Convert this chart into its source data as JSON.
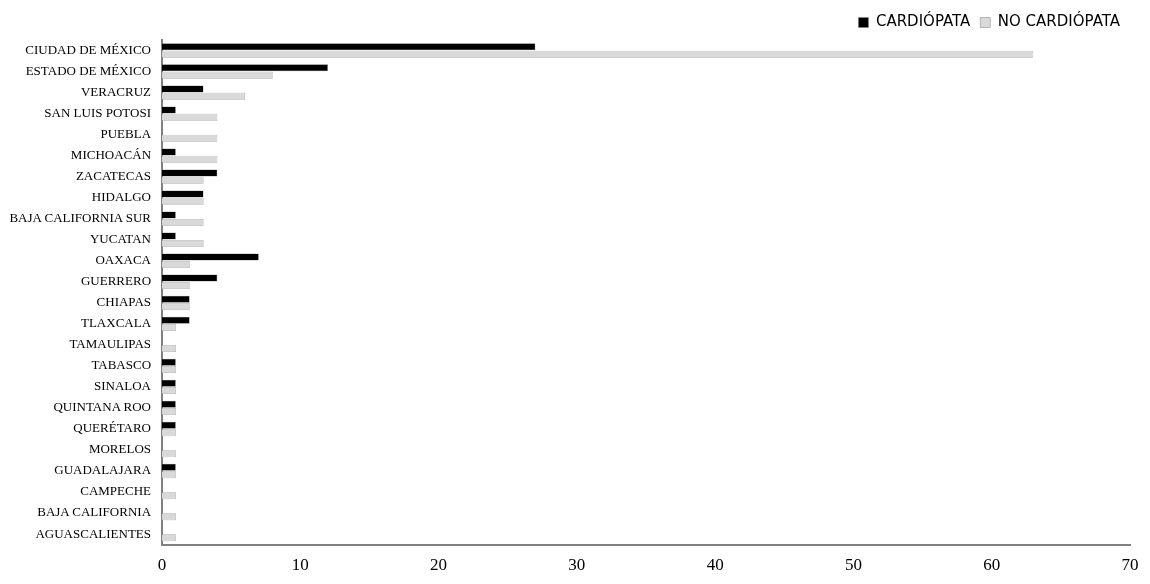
{
  "chart_data": {
    "type": "bar",
    "orientation": "horizontal",
    "categories": [
      "CIUDAD DE MÉXICO",
      "ESTADO DE MÉXICO",
      "VERACRUZ",
      "SAN LUIS POTOSI",
      "PUEBLA",
      "MICHOACÁN",
      "ZACATECAS",
      "HIDALGO",
      "BAJA CALIFORNIA SUR",
      "YUCATAN",
      "OAXACA",
      "GUERRERO",
      "CHIAPAS",
      "TLAXCALA",
      "TAMAULIPAS",
      "TABASCO",
      "SINALOA",
      "QUINTANA ROO",
      "QUERÉTARO",
      "MORELOS",
      "GUADALAJARA",
      "CAMPECHE",
      "BAJA CALIFORNIA",
      "AGUASCALIENTES"
    ],
    "series": [
      {
        "name": "CARDIÓPATA",
        "color": "#000000",
        "values": [
          27,
          12,
          3,
          1,
          0,
          1,
          4,
          3,
          1,
          1,
          7,
          4,
          2,
          2,
          0,
          1,
          1,
          1,
          1,
          0,
          1,
          0,
          0,
          0
        ]
      },
      {
        "name": "NO CARDIÓPATA",
        "color": "#d9d9d9",
        "values": [
          63,
          8,
          6,
          4,
          4,
          4,
          3,
          3,
          3,
          3,
          2,
          2,
          2,
          1,
          1,
          1,
          1,
          1,
          1,
          1,
          1,
          1,
          1,
          1
        ]
      }
    ],
    "xlim": [
      0,
      70
    ],
    "xticks": [
      0,
      10,
      20,
      30,
      40,
      50,
      60,
      70
    ],
    "grid": false,
    "legend": "top right"
  }
}
